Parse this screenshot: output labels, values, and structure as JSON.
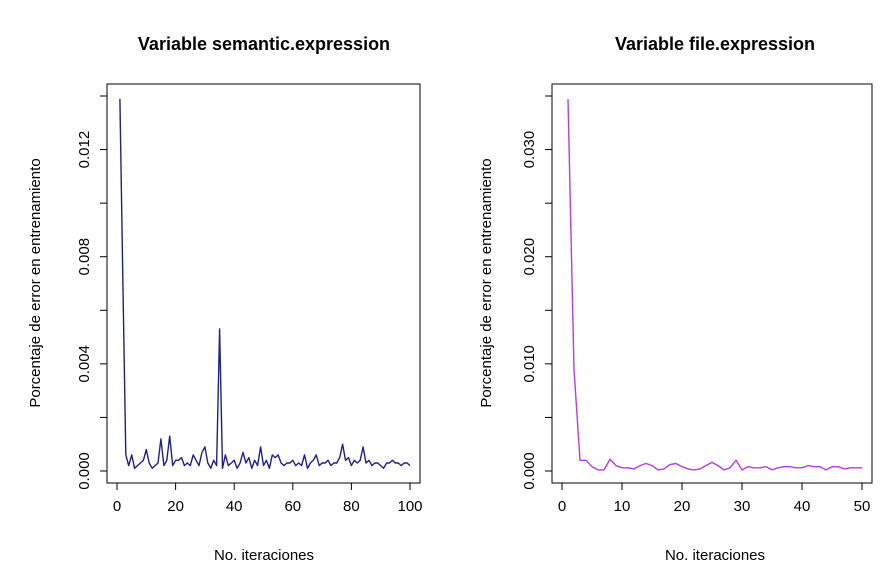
{
  "chart_data": [
    {
      "type": "line",
      "title": "Variable semantic.expression",
      "xlabel": "No. iteraciones",
      "ylabel": "Porcentaje de error en entrenamiento",
      "xlim": [
        0,
        100
      ],
      "ylim": [
        0,
        0.014
      ],
      "x_ticks": [
        0,
        20,
        40,
        60,
        80,
        100
      ],
      "y_ticks": [
        "0.000",
        "0.004",
        "0.008",
        "0.012"
      ],
      "y_tick_values": [
        0,
        0.004,
        0.008,
        0.012
      ],
      "grid": false,
      "color": "#1f1f8a",
      "series": [
        {
          "x": [
            1,
            2,
            3,
            4,
            5,
            6,
            7,
            8,
            9,
            10,
            11,
            12,
            13,
            14,
            15,
            16,
            17,
            18,
            19,
            20,
            21,
            22,
            23,
            24,
            25,
            26,
            27,
            28,
            29,
            30,
            31,
            32,
            33,
            34,
            35,
            36,
            37,
            38,
            39,
            40,
            41,
            42,
            43,
            44,
            45,
            46,
            47,
            48,
            49,
            50,
            51,
            52,
            53,
            54,
            55,
            56,
            57,
            58,
            59,
            60,
            61,
            62,
            63,
            64,
            65,
            66,
            67,
            68,
            69,
            70,
            71,
            72,
            73,
            74,
            75,
            76,
            77,
            78,
            79,
            80,
            81,
            82,
            83,
            84,
            85,
            86,
            87,
            88,
            89,
            90,
            91,
            92,
            93,
            94,
            95,
            96,
            97,
            98,
            99,
            100
          ],
          "values": [
            0.0139,
            0.007,
            0.0006,
            0.0002,
            0.0006,
            0.0001,
            0.0002,
            0.0003,
            0.0004,
            0.0008,
            0.0003,
            0.0001,
            0.0002,
            0.0003,
            0.0012,
            0.0002,
            0.0004,
            0.0013,
            0.0002,
            0.0004,
            0.0004,
            0.0005,
            0.0002,
            0.0003,
            0.0002,
            0.0006,
            0.0004,
            0.0002,
            0.0007,
            0.0009,
            0.0003,
            0.0001,
            0.0004,
            0.0002,
            0.0053,
            0.0001,
            0.0006,
            0.0002,
            0.0003,
            0.0004,
            0.0001,
            0.0003,
            0.0007,
            0.0003,
            0.0005,
            0.0001,
            0.0004,
            0.0002,
            0.0009,
            0.0002,
            0.0004,
            0.0001,
            0.0006,
            0.0005,
            0.0006,
            0.0003,
            0.0002,
            0.0003,
            0.0003,
            0.0004,
            0.0002,
            0.0003,
            0.0002,
            0.0006,
            0.0001,
            0.0003,
            0.0004,
            0.0006,
            0.0002,
            0.0003,
            0.0003,
            0.0004,
            0.0002,
            0.0003,
            0.0003,
            0.0005,
            0.001,
            0.0004,
            0.0005,
            0.0002,
            0.0004,
            0.0003,
            0.0004,
            0.0009,
            0.0003,
            0.0004,
            0.0002,
            0.0003,
            0.0003,
            0.0002,
            0.0001,
            0.0003,
            0.0003,
            0.0004,
            0.0003,
            0.0003,
            0.0002,
            0.0003,
            0.0003,
            0.0002
          ]
        }
      ]
    },
    {
      "type": "line",
      "title": "Variable file.expression",
      "xlabel": "No. iteraciones",
      "ylabel": "Porcentaje de error en entrenamiento",
      "xlim": [
        0,
        50
      ],
      "ylim": [
        0,
        0.035
      ],
      "x_ticks": [
        0,
        10,
        20,
        30,
        40,
        50
      ],
      "y_ticks": [
        "0.000",
        "0.010",
        "0.020",
        "0.030"
      ],
      "y_tick_values": [
        0,
        0.01,
        0.02,
        0.03
      ],
      "grid": false,
      "color": "#b43ce6",
      "series": [
        {
          "x": [
            1,
            2,
            3,
            4,
            5,
            6,
            7,
            8,
            9,
            10,
            11,
            12,
            13,
            14,
            15,
            16,
            17,
            18,
            19,
            20,
            21,
            22,
            23,
            24,
            25,
            26,
            27,
            28,
            29,
            30,
            31,
            32,
            33,
            34,
            35,
            36,
            37,
            38,
            39,
            40,
            41,
            42,
            43,
            44,
            45,
            46,
            47,
            48,
            49,
            50
          ],
          "values": [
            0.0347,
            0.0095,
            0.001,
            0.001,
            0.0004,
            0.0001,
            0.0001,
            0.0011,
            0.0005,
            0.0003,
            0.0003,
            0.0002,
            0.0005,
            0.0007,
            0.0005,
            0.0001,
            0.0002,
            0.0006,
            0.0007,
            0.0004,
            0.0002,
            0.0001,
            0.0002,
            0.0005,
            0.0008,
            0.0005,
            0.0001,
            0.0003,
            0.001,
            0.0001,
            0.0004,
            0.0003,
            0.0003,
            0.0004,
            0.0001,
            0.0003,
            0.0004,
            0.0004,
            0.0003,
            0.0003,
            0.0005,
            0.0004,
            0.0004,
            0.0001,
            0.0004,
            0.0004,
            0.0002,
            0.0003,
            0.0003,
            0.0003
          ]
        }
      ]
    }
  ]
}
